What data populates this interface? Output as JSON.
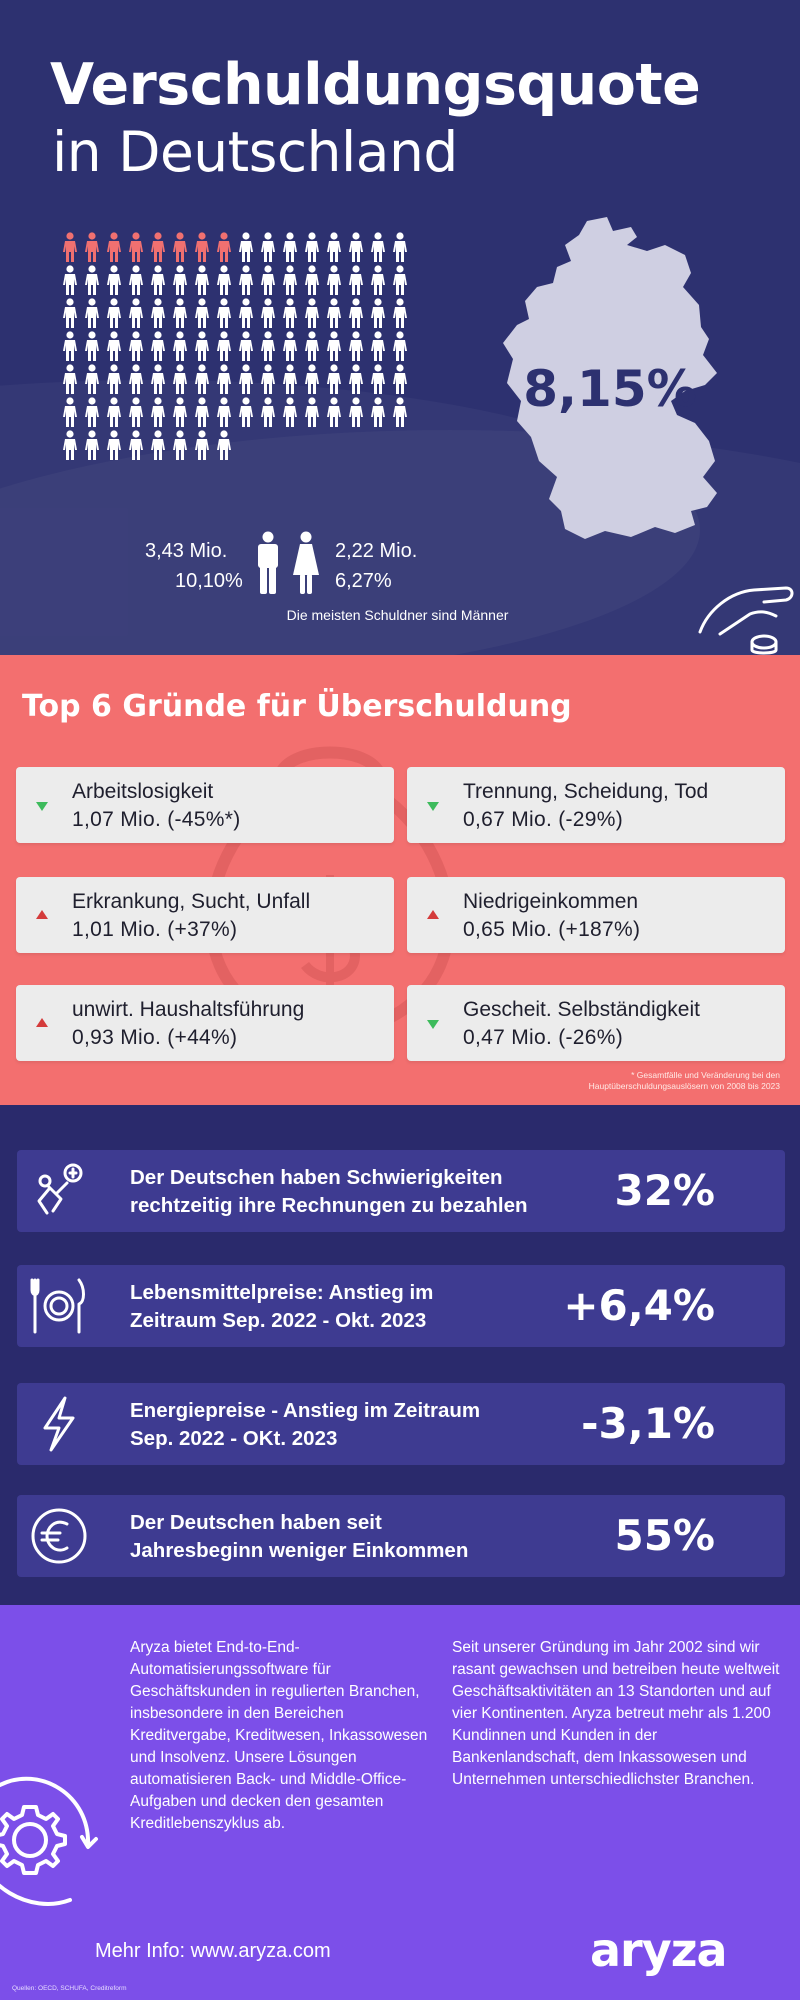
{
  "header": {
    "title_line1": "Verschuldungsquote",
    "title_line2": "in Deutschland",
    "map_value": "8,15%",
    "people_grid": {
      "total": 104,
      "highlighted": 8,
      "highlight_color": "#f07070",
      "base_color": "#ffffff"
    },
    "men": {
      "count": "3,43 Mio.",
      "percent": "10,10%"
    },
    "women": {
      "count": "2,22 Mio.",
      "percent": "6,27%"
    },
    "note": "Die meisten Schuldner sind Männer"
  },
  "reasons": {
    "title": "Top 6 Gründe für Überschuldung",
    "items": [
      {
        "label": "Arbeitslosigkeit",
        "value": "1,07 Mio. (-45%*)",
        "trend": "down"
      },
      {
        "label": "Trennung, Scheidung, Tod",
        "value": "0,67 Mio. (-29%)",
        "trend": "down"
      },
      {
        "label": "Erkrankung, Sucht, Unfall",
        "value": "1,01 Mio. (+37%)",
        "trend": "up"
      },
      {
        "label": "Niedrigeinkommen",
        "value": "0,65 Mio. (+187%)",
        "trend": "up"
      },
      {
        "label": "unwirt. Haushaltsführung",
        "value": "0,93 Mio. (+44%)",
        "trend": "up"
      },
      {
        "label": "Gescheit. Selbständigkeit",
        "value": "0,47 Mio. (-26%)",
        "trend": "down"
      }
    ],
    "footnote_line1": "* Gesamtfälle und Veränderung bei den",
    "footnote_line2": "Hauptüberschuldungsauslösern von 2008 bis 2023"
  },
  "stats": [
    {
      "icon": "stress-person-icon",
      "line1": "Der Deutschen haben Schwierigkeiten",
      "line2": "rechtzeitig ihre Rechnungen zu bezahlen",
      "value": "32%"
    },
    {
      "icon": "food-plate-icon",
      "line1": "Lebensmittelpreise: Anstieg im",
      "line2": "Zeitraum Sep. 2022 - Okt. 2023",
      "value": "+6,4%"
    },
    {
      "icon": "lightning-icon",
      "line1": "Energiepreise - Anstieg im Zeitraum",
      "line2": "Sep. 2022 - OKt. 2023",
      "value": "-3,1%"
    },
    {
      "icon": "euro-icon",
      "line1": "Der Deutschen haben seit",
      "line2": "Jahresbeginn weniger Einkommen",
      "value": "55%"
    }
  ],
  "footer": {
    "about_left": "Aryza bietet End-to-End-Automatisierungssoftware für Geschäftskunden in regulierten Branchen, insbesondere in den Bereichen Kreditvergabe, Kreditwesen, Inkassowesen und Insolvenz. Unsere Lösungen automatisieren Back- und Middle-Office-Aufgaben und decken den gesamten Kreditlebenszyklus ab.",
    "about_right": "Seit unserer Gründung im Jahr 2002 sind wir rasant gewachsen und betreiben heute weltweit Geschäftsaktivitäten an 13 Standorten und auf vier Kontinenten. Aryza betreut mehr als 1.200 Kundinnen und Kunden in der Bankenlandschaft, dem Inkassowesen und Unternehmen unterschiedlichster Branchen.",
    "more_info": "Mehr Info: www.aryza.com",
    "brand": "aryza",
    "sources": "Quellen: OECD, SCHUFA, Creditreform"
  }
}
